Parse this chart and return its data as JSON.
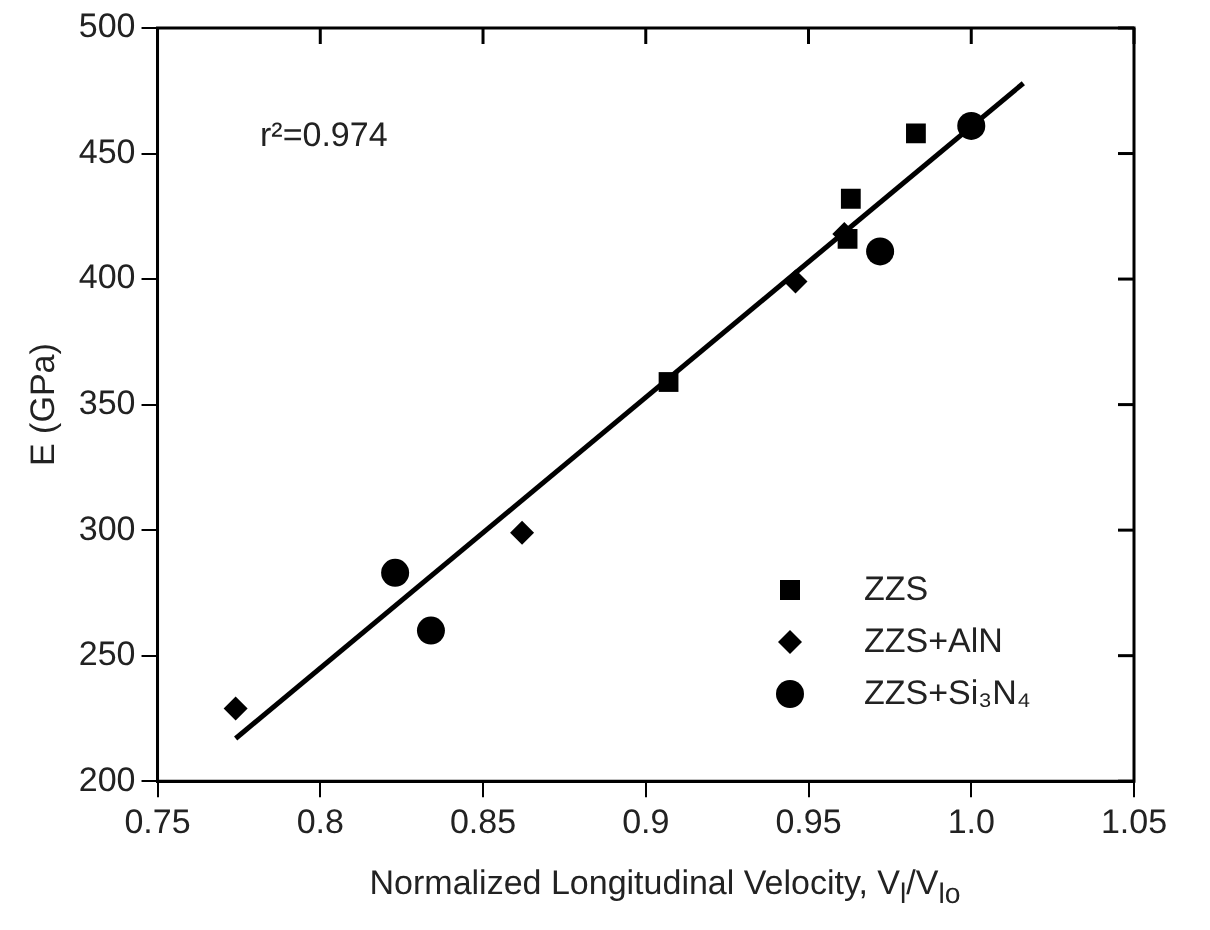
{
  "chart_data": {
    "type": "scatter",
    "xlabel": "Normalized Longitudinal Velocity, V$_{l}$/V$_{lo}$",
    "ylabel": "E (GPa)",
    "annotations": [
      "r²=0.974"
    ],
    "xlim": [
      0.75,
      1.05
    ],
    "xticks": [
      0.75,
      0.8,
      0.85,
      0.9,
      0.95,
      {
        "value": 1,
        "label": "1.0"
      },
      1.05
    ],
    "ylim": [
      200,
      500
    ],
    "yticks": [
      200,
      250,
      300,
      350,
      400,
      450,
      500
    ],
    "grid": false,
    "legend": "bottom right",
    "series": [
      {
        "name": "ZZS",
        "color": "#000000",
        "marker": "square",
        "x": [
          0.907,
          0.962,
          0.963,
          0.983
        ],
        "values": [
          359,
          416,
          432,
          458
        ]
      },
      {
        "name": "ZZS+AlN",
        "color": "#000000",
        "marker": "diamond",
        "x": [
          0.774,
          0.862,
          0.946,
          0.961
        ],
        "values": [
          229,
          299,
          399,
          418
        ]
      },
      {
        "name": "ZZS+Si₃N₄",
        "color": "#000000",
        "marker": "circle",
        "x": [
          0.823,
          0.834,
          0.972,
          1.0
        ],
        "values": [
          283,
          260,
          411,
          461
        ]
      },
      {
        "type": "line",
        "color": "#000000",
        "marker": "none",
        "x": [
          0.774,
          1.016
        ],
        "values": [
          217,
          478
        ]
      }
    ]
  }
}
